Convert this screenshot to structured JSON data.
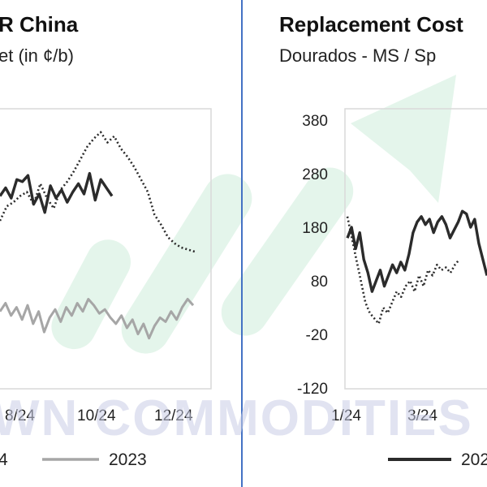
{
  "colors": {
    "accent_green": "#bfe8cf",
    "divider_blue": "#4472c4",
    "series_dark": "#2b2b2b",
    "series_gray": "#a6a6a6",
    "frame": "#d9d9d9"
  },
  "watermark": {
    "text": "WN COMMODITIES"
  },
  "chart_data": [
    {
      "type": "line",
      "title": "R China",
      "subtitle": "et (in ¢/b)",
      "x_tick_labels": [
        "8/24",
        "10/24",
        "12/24"
      ],
      "legend": [
        {
          "label": "4",
          "style": "solid",
          "color": "#2b2b2b"
        },
        {
          "label": "2023",
          "style": "solid",
          "color": "#a6a6a6"
        }
      ],
      "series": [
        {
          "style": "solid",
          "color": "#2b2b2b",
          "values": [
            50,
            54,
            49,
            58,
            57,
            60,
            46,
            51,
            42,
            55,
            49,
            53,
            47,
            52,
            56,
            51,
            61,
            48,
            58,
            54,
            50
          ]
        },
        {
          "style": "dotted",
          "color": "#2b2b2b",
          "values": [
            38,
            45,
            47,
            50,
            52,
            46,
            56,
            49,
            44,
            53,
            57,
            62,
            68,
            74,
            78,
            81,
            76,
            79,
            73,
            69,
            64,
            58,
            52,
            41,
            36,
            30,
            27,
            25,
            24,
            23
          ]
        },
        {
          "style": "solid",
          "color": "#a6a6a6",
          "values": [
            -6,
            -2,
            -8,
            -4,
            -10,
            -3,
            -12,
            -6,
            -16,
            -9,
            -5,
            -11,
            -4,
            -8,
            -2,
            -6,
            0,
            -3,
            -7,
            -5,
            -9,
            -12,
            -8,
            -14,
            -10,
            -17,
            -12,
            -19,
            -13,
            -9,
            -11,
            -6,
            -10,
            -4,
            0,
            -3
          ]
        }
      ]
    },
    {
      "type": "line",
      "title": "Replacement Cost",
      "subtitle": "Dourados - MS / Sp",
      "y_tick_labels": [
        "380",
        "280",
        "180",
        "80",
        "-20",
        "-120"
      ],
      "ylim": [
        -120,
        380
      ],
      "x_tick_labels": [
        "1/24",
        "3/24"
      ],
      "legend": [
        {
          "label": "202",
          "style": "solid",
          "color": "#2b2b2b"
        }
      ],
      "series": [
        {
          "style": "solid",
          "color": "#2b2b2b",
          "values": [
            160,
            180,
            140,
            170,
            120,
            95,
            60,
            80,
            100,
            70,
            90,
            110,
            95,
            115,
            100,
            130,
            170,
            190,
            200,
            185,
            195,
            170,
            190,
            200,
            185,
            160,
            175,
            190,
            210,
            205,
            180,
            195,
            150,
            120,
            90
          ]
        },
        {
          "style": "dotted",
          "color": "#2b2b2b",
          "values": [
            200,
            160,
            120,
            80,
            40,
            20,
            10,
            0,
            30,
            20,
            40,
            60,
            50,
            70,
            80,
            60,
            90,
            70,
            100,
            90,
            110,
            100,
            105,
            95,
            110,
            120
          ]
        }
      ]
    }
  ]
}
